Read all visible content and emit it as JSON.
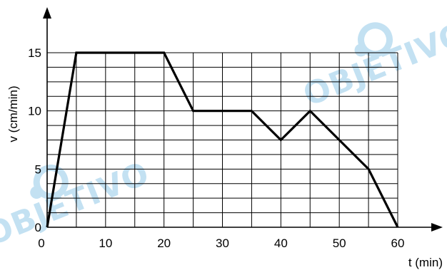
{
  "chart_data": {
    "type": "line",
    "xlabel": "t (min)",
    "ylabel": "v (cm/min)",
    "xlim": [
      0,
      60
    ],
    "ylim": [
      0,
      15
    ],
    "grid": true,
    "x_ticks": [
      0,
      10,
      20,
      30,
      40,
      50,
      60
    ],
    "y_ticks": [
      0,
      5,
      10,
      15
    ],
    "series": [
      {
        "x": [
          0,
          5,
          20,
          25,
          35,
          40,
          45,
          55,
          60
        ],
        "y": [
          0,
          15,
          15,
          10,
          10,
          7.5,
          10,
          5,
          0
        ]
      }
    ]
  },
  "watermark": {
    "text": "OBJETIVO",
    "color": "#b9dcf0"
  }
}
